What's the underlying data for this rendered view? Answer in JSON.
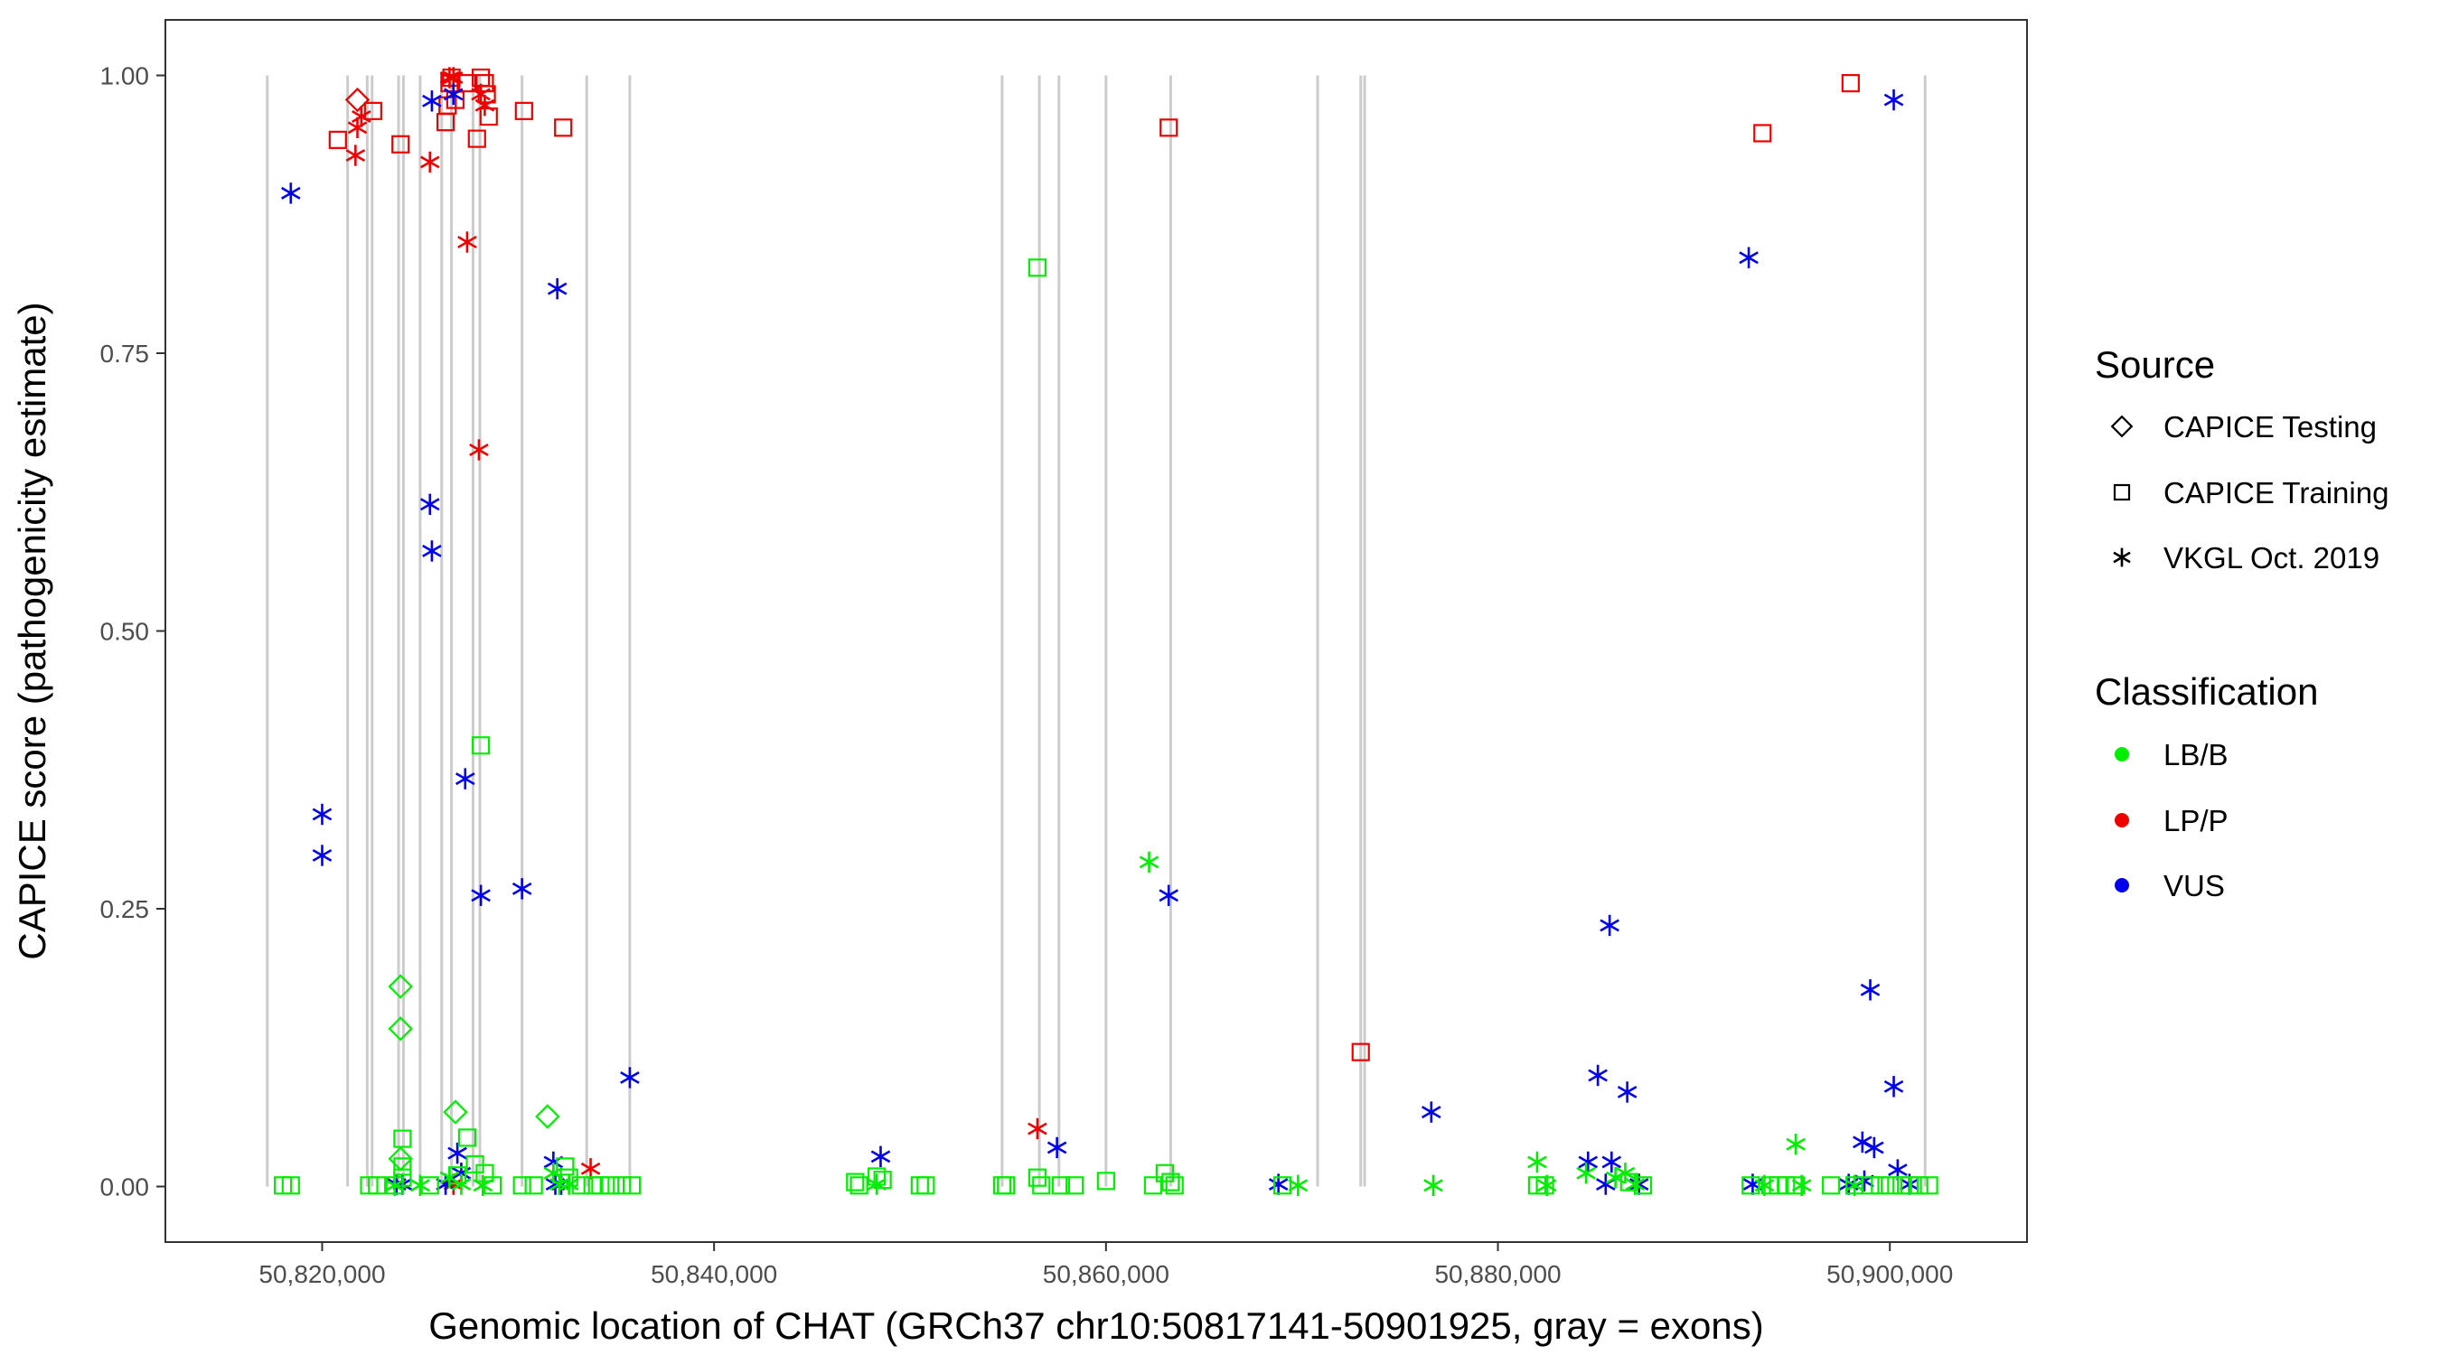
{
  "chart_data": {
    "type": "scatter",
    "xlabel": "Genomic location of CHAT (GRCh37 chr10:50817141-50901925, gray = exons)",
    "ylabel": "CAPICE score (pathogenicity estimate)",
    "xlim": [
      50812000,
      50907000
    ],
    "ylim": [
      -0.05,
      1.05
    ],
    "x_ticks": [
      50820000,
      50840000,
      50860000,
      50880000,
      50900000
    ],
    "x_tick_labels": [
      "50,820,000",
      "50,840,000",
      "50,860,000",
      "50,880,000",
      "50,900,000"
    ],
    "y_ticks": [
      0,
      0.25,
      0.5,
      0.75,
      1.0
    ],
    "y_tick_labels": [
      "0.00",
      "0.25",
      "0.50",
      "0.75",
      "1.00"
    ],
    "grid": false,
    "legend_position": "right",
    "colors": {
      "LB/B": "#00ee00",
      "LP/P": "#ee0000",
      "VUS": "#0000ee",
      "exon": "#cccccc",
      "panel_border": "#333333"
    },
    "exons": [
      50817200,
      50821300,
      50822300,
      50822550,
      50823900,
      50824150,
      50825000,
      50826100,
      50826600,
      50827700,
      50828050,
      50830200,
      50833500,
      50835700,
      50854700,
      50856600,
      50857600,
      50860000,
      50863300,
      50870800,
      50873000,
      50873200,
      50901800
    ],
    "legend": {
      "source": {
        "title": "Source",
        "items": [
          {
            "label": "CAPICE Testing",
            "shape": "diamond"
          },
          {
            "label": "CAPICE Training",
            "shape": "square"
          },
          {
            "label": "VKGL Oct. 2019",
            "shape": "asterisk"
          }
        ]
      },
      "classification": {
        "title": "Classification",
        "items": [
          {
            "label": "LB/B",
            "color": "#00ee00"
          },
          {
            "label": "LP/P",
            "color": "#ee0000"
          },
          {
            "label": "VUS",
            "color": "#0000ee"
          }
        ]
      }
    },
    "series": [
      {
        "classification": "LP/P",
        "source": "CAPICE Training",
        "points": [
          [
            50820800,
            0.942
          ],
          [
            50822600,
            0.968
          ],
          [
            50824000,
            0.938
          ],
          [
            50826300,
            0.958
          ],
          [
            50826400,
            0.973
          ],
          [
            50826500,
            0.993
          ],
          [
            50826600,
            0.998
          ],
          [
            50826800,
            0.978
          ],
          [
            50827400,
            0.993
          ],
          [
            50827900,
            0.943
          ],
          [
            50828100,
            0.998
          ],
          [
            50828300,
            0.993
          ],
          [
            50828400,
            0.983
          ],
          [
            50828500,
            0.963
          ],
          [
            50830300,
            0.968
          ],
          [
            50832300,
            0.953
          ],
          [
            50863200,
            0.953
          ],
          [
            50873000,
            0.121
          ],
          [
            50893500,
            0.948
          ],
          [
            50898000,
            0.993
          ]
        ]
      },
      {
        "classification": "LP/P",
        "source": "CAPICE Testing",
        "points": [
          [
            50821800,
            0.978
          ]
        ]
      },
      {
        "classification": "LP/P",
        "source": "VKGL Oct. 2019",
        "points": [
          [
            50821700,
            0.928
          ],
          [
            50821800,
            0.953
          ],
          [
            50822000,
            0.963
          ],
          [
            50825500,
            0.922
          ],
          [
            50826500,
            0.998
          ],
          [
            50826700,
            0.998
          ],
          [
            50827400,
            0.85
          ],
          [
            50828000,
            0.663
          ],
          [
            50828100,
            0.983
          ],
          [
            50828300,
            0.973
          ],
          [
            50833700,
            0.016
          ],
          [
            50856500,
            0.052
          ],
          [
            50826700,
            0.002
          ]
        ]
      },
      {
        "classification": "VUS",
        "source": "VKGL Oct. 2019",
        "points": [
          [
            50818400,
            0.894
          ],
          [
            50820000,
            0.335
          ],
          [
            50820000,
            0.298
          ],
          [
            50825500,
            0.614
          ],
          [
            50825600,
            0.572
          ],
          [
            50825600,
            0.977
          ],
          [
            50826700,
            0.983
          ],
          [
            50827300,
            0.367
          ],
          [
            50828100,
            0.262
          ],
          [
            50830200,
            0.268
          ],
          [
            50832000,
            0.808
          ],
          [
            50831800,
            0.022
          ],
          [
            50835700,
            0.098
          ],
          [
            50848500,
            0.027
          ],
          [
            50857500,
            0.035
          ],
          [
            50863200,
            0.262
          ],
          [
            50868800,
            0.002
          ],
          [
            50876600,
            0.067
          ],
          [
            50884600,
            0.022
          ],
          [
            50885100,
            0.1
          ],
          [
            50885700,
            0.235
          ],
          [
            50885800,
            0.022
          ],
          [
            50886600,
            0.085
          ],
          [
            50892800,
            0.836
          ],
          [
            50899000,
            0.177
          ],
          [
            50898600,
            0.04
          ],
          [
            50899200,
            0.035
          ],
          [
            50900200,
            0.978
          ],
          [
            50900200,
            0.09
          ],
          [
            50900400,
            0.015
          ],
          [
            50823800,
            0.002
          ],
          [
            50824100,
            0.002
          ],
          [
            50826300,
            0.002
          ],
          [
            50826900,
            0.03
          ],
          [
            50827100,
            0.012
          ],
          [
            50831900,
            0.002
          ],
          [
            50832200,
            0.002
          ],
          [
            50885500,
            0.002
          ],
          [
            50887200,
            0.002
          ],
          [
            50893000,
            0.002
          ],
          [
            50897900,
            0.002
          ],
          [
            50898700,
            0.005
          ],
          [
            50901000,
            0.002
          ]
        ]
      },
      {
        "classification": "LB/B",
        "source": "CAPICE Testing",
        "points": [
          [
            50824000,
            0.18
          ],
          [
            50824000,
            0.142
          ],
          [
            50826800,
            0.067
          ],
          [
            50831500,
            0.063
          ],
          [
            50824000,
            0.025
          ]
        ]
      },
      {
        "classification": "LB/B",
        "source": "CAPICE Training",
        "points": [
          [
            50818000,
            0.001
          ],
          [
            50818400,
            0.001
          ],
          [
            50822400,
            0.001
          ],
          [
            50822800,
            0.001
          ],
          [
            50823700,
            0.001
          ],
          [
            50824100,
            0.043
          ],
          [
            50824100,
            0.018
          ],
          [
            50824100,
            0.008
          ],
          [
            50825500,
            0.001
          ],
          [
            50826900,
            0.01
          ],
          [
            50827400,
            0.044
          ],
          [
            50827800,
            0.02
          ],
          [
            50828100,
            0.397
          ],
          [
            50828300,
            0.012
          ],
          [
            50828700,
            0.001
          ],
          [
            50830200,
            0.001
          ],
          [
            50830800,
            0.001
          ],
          [
            50832400,
            0.018
          ],
          [
            50832600,
            0.008
          ],
          [
            50833200,
            0.001
          ],
          [
            50833800,
            0.001
          ],
          [
            50834200,
            0.001
          ],
          [
            50834700,
            0.001
          ],
          [
            50835300,
            0.001
          ],
          [
            50835800,
            0.001
          ],
          [
            50847200,
            0.004
          ],
          [
            50847400,
            0.001
          ],
          [
            50848300,
            0.009
          ],
          [
            50848600,
            0.006
          ],
          [
            50850500,
            0.001
          ],
          [
            50850800,
            0.001
          ],
          [
            50854700,
            0.001
          ],
          [
            50854900,
            0.001
          ],
          [
            50856500,
            0.827
          ],
          [
            50856500,
            0.008
          ],
          [
            50856700,
            0.001
          ],
          [
            50857700,
            0.001
          ],
          [
            50858400,
            0.001
          ],
          [
            50860000,
            0.005
          ],
          [
            50862400,
            0.001
          ],
          [
            50863000,
            0.012
          ],
          [
            50863300,
            0.004
          ],
          [
            50863500,
            0.001
          ],
          [
            50869000,
            0.001
          ],
          [
            50882000,
            0.001
          ],
          [
            50882400,
            0.001
          ],
          [
            50886700,
            0.004
          ],
          [
            50887400,
            0.001
          ],
          [
            50892900,
            0.001
          ],
          [
            50893900,
            0.001
          ],
          [
            50894300,
            0.001
          ],
          [
            50894700,
            0.001
          ],
          [
            50895200,
            0.001
          ],
          [
            50897000,
            0.001
          ],
          [
            50898200,
            0.001
          ],
          [
            50899000,
            0.001
          ],
          [
            50899500,
            0.001
          ],
          [
            50900000,
            0.001
          ],
          [
            50900600,
            0.001
          ],
          [
            50901000,
            0.001
          ],
          [
            50901500,
            0.001
          ],
          [
            50902000,
            0.001
          ]
        ]
      },
      {
        "classification": "LB/B",
        "source": "VKGL Oct. 2019",
        "points": [
          [
            50823700,
            0.001
          ],
          [
            50825000,
            0.001
          ],
          [
            50826500,
            0.008
          ],
          [
            50827100,
            0.002
          ],
          [
            50828200,
            0.001
          ],
          [
            50831800,
            0.012
          ],
          [
            50832100,
            0.002
          ],
          [
            50832600,
            0.002
          ],
          [
            50848300,
            0.002
          ],
          [
            50862200,
            0.292
          ],
          [
            50869800,
            0.001
          ],
          [
            50876700,
            0.001
          ],
          [
            50882000,
            0.022
          ],
          [
            50882500,
            0.001
          ],
          [
            50884500,
            0.012
          ],
          [
            50886000,
            0.008
          ],
          [
            50886500,
            0.012
          ],
          [
            50887000,
            0.002
          ],
          [
            50893600,
            0.001
          ],
          [
            50895200,
            0.038
          ],
          [
            50895500,
            0.001
          ],
          [
            50898200,
            0.001
          ]
        ]
      }
    ]
  }
}
